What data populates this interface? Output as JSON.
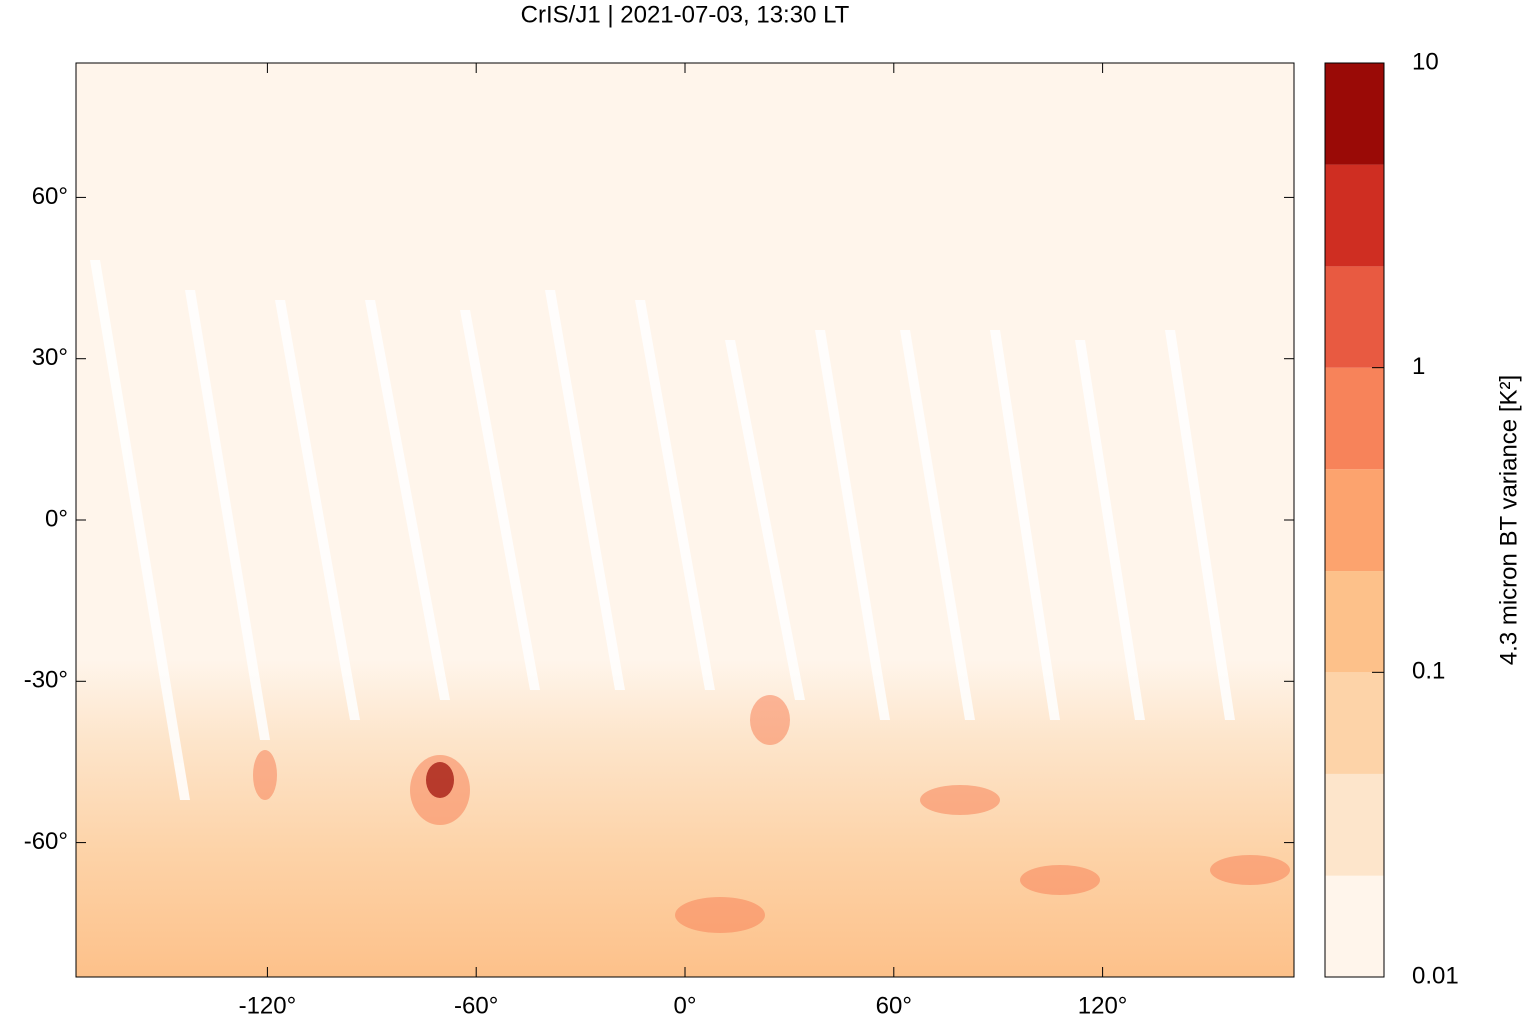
{
  "chart_data": {
    "type": "map",
    "title": "CrIS/J1 | 2021-07-03, 13:30 LT",
    "xlim": [
      -175,
      175
    ],
    "ylim": [
      -85,
      85
    ],
    "xticks": [
      {
        "value": -120,
        "label": "-120°"
      },
      {
        "value": -60,
        "label": "-60°"
      },
      {
        "value": 0,
        "label": "0°"
      },
      {
        "value": 60,
        "label": "60°"
      },
      {
        "value": 120,
        "label": "120°"
      }
    ],
    "yticks": [
      {
        "value": -60,
        "label": "-60°"
      },
      {
        "value": -30,
        "label": "-30°"
      },
      {
        "value": 0,
        "label": "0°"
      },
      {
        "value": 30,
        "label": "30°"
      },
      {
        "value": 60,
        "label": "60°"
      }
    ],
    "colorbar": {
      "label": "4.3 micron BT variance [K²]",
      "log": true,
      "lim": [
        0.01,
        10
      ],
      "ticks": [
        0.01,
        0.1,
        1,
        10
      ],
      "levels": [
        0.01,
        0.0215,
        0.0464,
        0.1,
        0.215,
        0.464,
        1,
        2.15,
        4.64,
        10
      ],
      "colors": [
        "#fff5eb",
        "#fde5cb",
        "#fdd3a8",
        "#fdc18a",
        "#fca36e",
        "#f7835a",
        "#e85a41",
        "#cf2e22",
        "#9a0a06"
      ]
    }
  }
}
